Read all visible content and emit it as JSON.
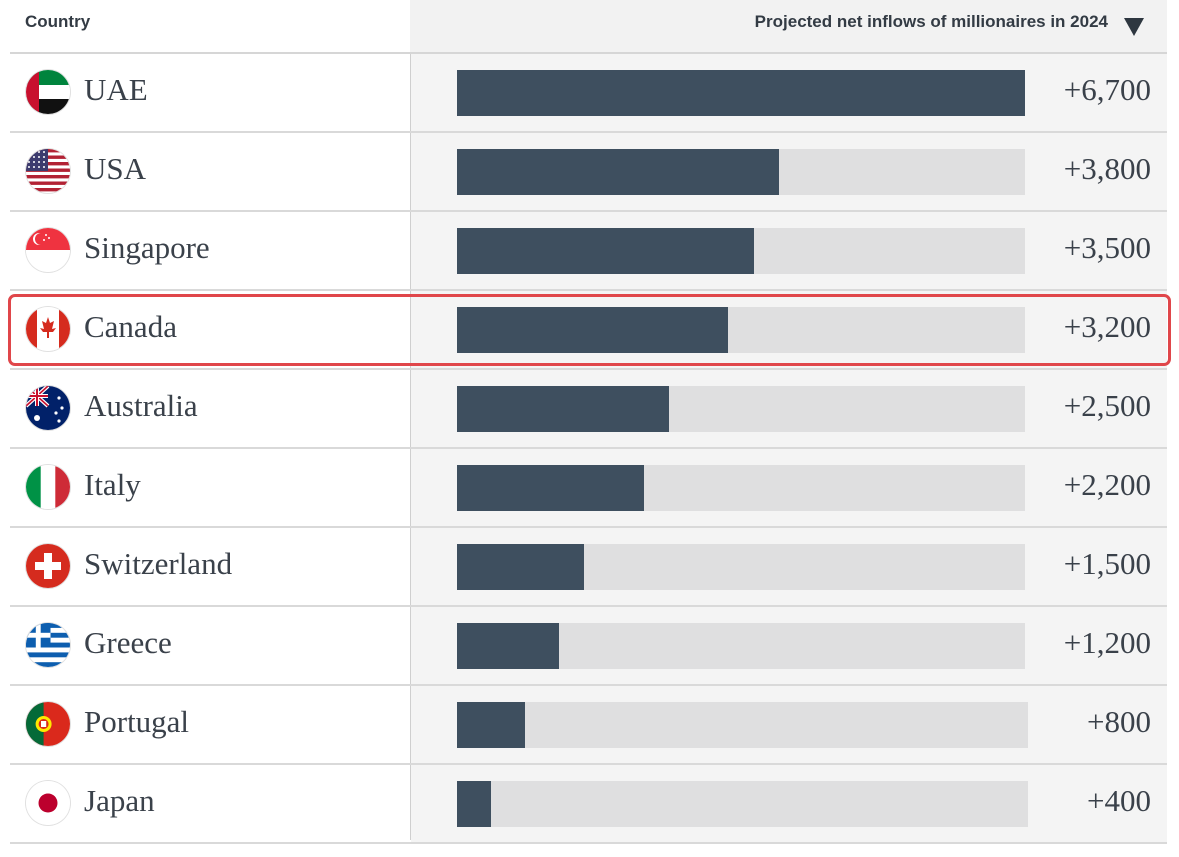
{
  "header": {
    "country_label": "Country",
    "metric_label": "Projected net inflows of millionaires in 2024",
    "sort_icon": "sort-descending-triangle"
  },
  "highlight_row": "Canada",
  "colors": {
    "bar_fill": "#3e4f5f",
    "bar_track": "#dfdfe0",
    "highlight_border": "#e0464a"
  },
  "chart_data": {
    "type": "bar",
    "orientation": "horizontal",
    "title": "",
    "xlabel": "Projected net inflows of millionaires in 2024",
    "ylabel": "Country",
    "xlim": [
      0,
      6700
    ],
    "grid": false,
    "sort": "descending",
    "categories": [
      "UAE",
      "USA",
      "Singapore",
      "Canada",
      "Australia",
      "Italy",
      "Switzerland",
      "Greece",
      "Portugal",
      "Japan"
    ],
    "values": [
      6700,
      3800,
      3500,
      3200,
      2500,
      2200,
      1500,
      1200,
      800,
      400
    ],
    "value_labels": [
      "+6,700",
      "+3,800",
      "+3,500",
      "+3,200",
      "+2,500",
      "+2,200",
      "+1,500",
      "+1,200",
      "+800",
      "+400"
    ],
    "flag_icons": [
      "uae-flag-icon",
      "usa-flag-icon",
      "singapore-flag-icon",
      "canada-flag-icon",
      "australia-flag-icon",
      "italy-flag-icon",
      "switzerland-flag-icon",
      "greece-flag-icon",
      "portugal-flag-icon",
      "japan-flag-icon"
    ]
  }
}
